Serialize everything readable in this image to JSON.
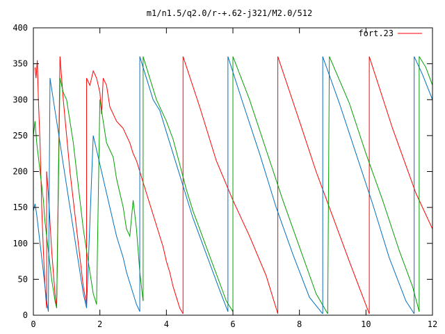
{
  "chart_data": {
    "type": "line",
    "title": "m1/n1.5/q2.0/r-+.62-j321/M2.0/512",
    "xlabel": "",
    "ylabel": "",
    "xlim": [
      0,
      12
    ],
    "ylim": [
      0,
      400
    ],
    "xticks": [
      0,
      2,
      4,
      6,
      8,
      10,
      12
    ],
    "yticks": [
      0,
      50,
      100,
      150,
      200,
      250,
      300,
      350,
      400
    ],
    "grid": false,
    "legend": {
      "position": "top-right",
      "entries": [
        "fort.23"
      ]
    },
    "series": [
      {
        "name": "fort.23",
        "color": "#ff0000",
        "segments": [
          [
            [
              0.05,
              345
            ],
            [
              0.08,
              330
            ],
            [
              0.12,
              355
            ],
            [
              0.15,
              300
            ],
            [
              0.2,
              240
            ],
            [
              0.25,
              150
            ],
            [
              0.3,
              90
            ],
            [
              0.35,
              40
            ],
            [
              0.4,
              10
            ]
          ],
          [
            [
              0.4,
              200
            ],
            [
              0.45,
              170
            ],
            [
              0.5,
              130
            ],
            [
              0.55,
              90
            ],
            [
              0.6,
              60
            ],
            [
              0.65,
              30
            ],
            [
              0.7,
              10
            ]
          ],
          [
            [
              0.8,
              360
            ],
            [
              0.9,
              300
            ],
            [
              1.0,
              250
            ],
            [
              1.1,
              200
            ],
            [
              1.2,
              160
            ],
            [
              1.3,
              120
            ],
            [
              1.4,
              80
            ],
            [
              1.5,
              40
            ],
            [
              1.6,
              15
            ]
          ],
          [
            [
              1.6,
              330
            ],
            [
              1.7,
              320
            ],
            [
              1.8,
              340
            ],
            [
              1.9,
              330
            ],
            [
              2.0,
              310
            ],
            [
              2.05,
              280
            ],
            [
              2.1,
              330
            ],
            [
              2.2,
              320
            ],
            [
              2.3,
              290
            ],
            [
              2.4,
              280
            ],
            [
              2.5,
              270
            ],
            [
              2.6,
              265
            ],
            [
              2.7,
              260
            ],
            [
              2.8,
              250
            ],
            [
              2.9,
              240
            ],
            [
              3.0,
              225
            ],
            [
              3.1,
              215
            ],
            [
              3.2,
              200
            ],
            [
              3.3,
              185
            ],
            [
              3.4,
              170
            ],
            [
              3.5,
              155
            ],
            [
              3.6,
              140
            ],
            [
              3.7,
              125
            ],
            [
              3.8,
              110
            ],
            [
              3.9,
              95
            ],
            [
              4.0,
              75
            ],
            [
              4.1,
              60
            ],
            [
              4.2,
              40
            ],
            [
              4.3,
              25
            ],
            [
              4.4,
              10
            ],
            [
              4.5,
              2
            ]
          ],
          [
            [
              4.5,
              360
            ],
            [
              5.0,
              290
            ],
            [
              5.5,
              215
            ],
            [
              6.0,
              160
            ],
            [
              6.5,
              110
            ],
            [
              7.0,
              55
            ],
            [
              7.35,
              2
            ]
          ],
          [
            [
              7.35,
              360
            ],
            [
              8.0,
              270
            ],
            [
              8.5,
              200
            ],
            [
              8.9,
              150
            ],
            [
              9.5,
              75
            ],
            [
              10.1,
              2
            ]
          ],
          [
            [
              10.1,
              360
            ],
            [
              10.8,
              260
            ],
            [
              11.5,
              170
            ],
            [
              12.0,
              120
            ]
          ]
        ]
      },
      {
        "name": "",
        "color": "#00a000",
        "segments": [
          [
            [
              0.0,
              250
            ],
            [
              0.05,
              270
            ],
            [
              0.1,
              240
            ],
            [
              0.15,
              220
            ],
            [
              0.2,
              200
            ],
            [
              0.25,
              180
            ],
            [
              0.3,
              160
            ],
            [
              0.35,
              130
            ],
            [
              0.4,
              110
            ],
            [
              0.45,
              90
            ],
            [
              0.5,
              70
            ],
            [
              0.55,
              50
            ],
            [
              0.6,
              35
            ],
            [
              0.65,
              20
            ],
            [
              0.7,
              10
            ]
          ],
          [
            [
              0.8,
              330
            ],
            [
              0.9,
              310
            ],
            [
              1.0,
              300
            ],
            [
              1.1,
              270
            ],
            [
              1.2,
              240
            ],
            [
              1.3,
              200
            ],
            [
              1.4,
              160
            ],
            [
              1.5,
              120
            ],
            [
              1.6,
              90
            ],
            [
              1.7,
              60
            ],
            [
              1.8,
              30
            ],
            [
              1.9,
              15
            ]
          ],
          [
            [
              2.0,
              300
            ],
            [
              2.1,
              270
            ],
            [
              2.2,
              240
            ],
            [
              2.3,
              230
            ],
            [
              2.4,
              220
            ],
            [
              2.5,
              190
            ],
            [
              2.6,
              170
            ],
            [
              2.7,
              150
            ],
            [
              2.8,
              120
            ],
            [
              2.9,
              110
            ],
            [
              3.0,
              160
            ],
            [
              3.1,
              120
            ],
            [
              3.2,
              60
            ],
            [
              3.3,
              20
            ]
          ],
          [
            [
              3.3,
              360
            ],
            [
              3.5,
              330
            ],
            [
              3.7,
              300
            ],
            [
              3.9,
              280
            ],
            [
              4.0,
              270
            ],
            [
              4.2,
              245
            ],
            [
              4.4,
              210
            ],
            [
              4.6,
              175
            ],
            [
              4.8,
              145
            ],
            [
              5.0,
              120
            ],
            [
              5.2,
              95
            ],
            [
              5.4,
              70
            ],
            [
              5.6,
              45
            ],
            [
              5.8,
              20
            ],
            [
              6.0,
              5
            ]
          ],
          [
            [
              6.0,
              360
            ],
            [
              6.5,
              300
            ],
            [
              7.0,
              230
            ],
            [
              7.5,
              160
            ],
            [
              8.0,
              95
            ],
            [
              8.5,
              30
            ],
            [
              8.85,
              2
            ]
          ],
          [
            [
              8.9,
              360
            ],
            [
              9.5,
              295
            ],
            [
              10.0,
              225
            ],
            [
              10.5,
              160
            ],
            [
              11.0,
              90
            ],
            [
              11.4,
              40
            ],
            [
              11.6,
              5
            ]
          ],
          [
            [
              11.6,
              360
            ],
            [
              11.8,
              345
            ],
            [
              12.0,
              320
            ]
          ]
        ]
      },
      {
        "name": "",
        "color": "#0070c0",
        "segments": [
          [
            [
              0.0,
              145
            ],
            [
              0.05,
              155
            ],
            [
              0.1,
              140
            ],
            [
              0.15,
              120
            ],
            [
              0.2,
              100
            ],
            [
              0.25,
              80
            ],
            [
              0.3,
              60
            ],
            [
              0.35,
              40
            ],
            [
              0.4,
              20
            ],
            [
              0.45,
              5
            ]
          ],
          [
            [
              0.5,
              330
            ],
            [
              0.6,
              300
            ],
            [
              0.7,
              270
            ],
            [
              0.8,
              240
            ],
            [
              0.9,
              210
            ],
            [
              1.0,
              180
            ],
            [
              1.1,
              150
            ],
            [
              1.2,
              120
            ],
            [
              1.3,
              90
            ],
            [
              1.4,
              60
            ],
            [
              1.5,
              30
            ],
            [
              1.6,
              10
            ]
          ],
          [
            [
              1.8,
              250
            ],
            [
              1.9,
              230
            ],
            [
              2.0,
              210
            ],
            [
              2.1,
              190
            ],
            [
              2.2,
              170
            ],
            [
              2.3,
              150
            ],
            [
              2.4,
              130
            ],
            [
              2.5,
              110
            ],
            [
              2.6,
              95
            ],
            [
              2.7,
              80
            ],
            [
              2.8,
              60
            ],
            [
              2.9,
              45
            ],
            [
              3.0,
              30
            ],
            [
              3.1,
              15
            ],
            [
              3.2,
              5
            ]
          ],
          [
            [
              3.2,
              360
            ],
            [
              3.3,
              345
            ],
            [
              3.4,
              330
            ],
            [
              3.5,
              315
            ],
            [
              3.6,
              300
            ],
            [
              3.8,
              285
            ],
            [
              4.0,
              255
            ],
            [
              4.2,
              225
            ],
            [
              4.4,
              195
            ],
            [
              4.6,
              165
            ],
            [
              4.8,
              135
            ],
            [
              5.0,
              110
            ],
            [
              5.2,
              85
            ],
            [
              5.4,
              60
            ],
            [
              5.6,
              35
            ],
            [
              5.85,
              5
            ]
          ],
          [
            [
              5.85,
              360
            ],
            [
              6.3,
              295
            ],
            [
              6.8,
              225
            ],
            [
              7.3,
              150
            ],
            [
              7.8,
              85
            ],
            [
              8.3,
              25
            ],
            [
              8.7,
              2
            ]
          ],
          [
            [
              8.7,
              360
            ],
            [
              9.2,
              295
            ],
            [
              9.7,
              225
            ],
            [
              10.2,
              155
            ],
            [
              10.7,
              80
            ],
            [
              11.2,
              20
            ],
            [
              11.45,
              2
            ]
          ],
          [
            [
              11.45,
              360
            ],
            [
              11.7,
              335
            ],
            [
              12.0,
              300
            ]
          ]
        ]
      }
    ]
  }
}
